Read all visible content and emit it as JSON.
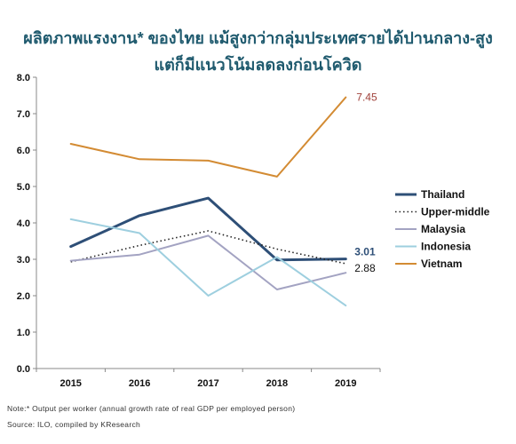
{
  "title_line1": "ผลิตภาพแรงงาน* ของไทย แม้สูงกว่ากลุ่มประเทศรายได้ปานกลาง-สูง",
  "title_line2": "แต่ก็มีแนวโน้มลดลงก่อนโควิด",
  "note": "Note:* Output per worker (annual growth rate of real GDP per employed person)",
  "source": "Source: ILO, compiled by KResearch",
  "chart_data": {
    "type": "line",
    "x": [
      "2015",
      "2016",
      "2017",
      "2018",
      "2019"
    ],
    "ylim": [
      0,
      8
    ],
    "yticks": [
      "0.0",
      "1.0",
      "2.0",
      "3.0",
      "4.0",
      "5.0",
      "6.0",
      "7.0",
      "8.0"
    ],
    "grid": false,
    "legend_position": "right",
    "series": [
      {
        "name": "Thailand",
        "values": [
          3.35,
          4.2,
          4.68,
          2.98,
          3.01
        ],
        "color": "#2e4f77",
        "style": "solid",
        "width": 3
      },
      {
        "name": "Upper-middle",
        "values": [
          2.93,
          3.38,
          3.78,
          3.28,
          2.88
        ],
        "color": "#222222",
        "style": "dotted",
        "width": 1.6
      },
      {
        "name": "Malaysia",
        "values": [
          2.96,
          3.13,
          3.65,
          2.17,
          2.63
        ],
        "color": "#a3a3c2",
        "style": "solid",
        "width": 2
      },
      {
        "name": "Indonesia",
        "values": [
          4.1,
          3.72,
          2.0,
          3.06,
          1.73
        ],
        "color": "#9ecfdf",
        "style": "solid",
        "width": 2
      },
      {
        "name": "Vietnam",
        "values": [
          6.17,
          5.75,
          5.71,
          5.27,
          7.45
        ],
        "color": "#d38b33",
        "style": "solid",
        "width": 2
      }
    ],
    "data_labels": [
      {
        "series": "Vietnam",
        "text": "7.45",
        "color": "#a0413a"
      },
      {
        "series": "Thailand",
        "text": "3.01",
        "color": "#2e4f77"
      },
      {
        "series": "Upper-middle",
        "text": "2.88",
        "color": "#111111"
      }
    ]
  }
}
